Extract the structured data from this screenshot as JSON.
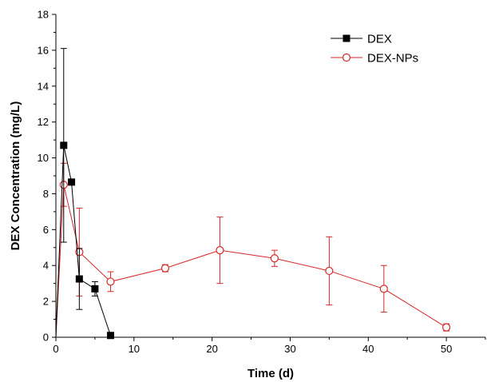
{
  "chart_data": {
    "type": "line",
    "xlabel": "Time (d)",
    "ylabel": "DEX Concentration (mg/L)",
    "xlim": [
      0,
      55
    ],
    "ylim": [
      0,
      18
    ],
    "xticks": [
      "0",
      "10",
      "20",
      "30",
      "40",
      "50"
    ],
    "yticks": [
      "0",
      "2",
      "4",
      "6",
      "8",
      "10",
      "12",
      "14",
      "16",
      "18"
    ],
    "legend_position": "top-right",
    "series": [
      {
        "name": "DEX",
        "color": "#000000",
        "marker": "filled-square",
        "points": [
          {
            "x": 0,
            "y": 0,
            "err": 0
          },
          {
            "x": 1,
            "y": 10.7,
            "err": 5.4
          },
          {
            "x": 2,
            "y": 8.65,
            "err": 0
          },
          {
            "x": 3,
            "y": 3.25,
            "err": 1.7
          },
          {
            "x": 5,
            "y": 2.7,
            "err": 0.4
          },
          {
            "x": 7,
            "y": 0.1,
            "err": 0
          }
        ]
      },
      {
        "name": "DEX-NPs",
        "color": "#d62728",
        "marker": "open-circle",
        "points": [
          {
            "x": 0,
            "y": 0,
            "err": 0
          },
          {
            "x": 1,
            "y": 8.5,
            "err": 1.2
          },
          {
            "x": 3,
            "y": 4.75,
            "err": 2.45
          },
          {
            "x": 7,
            "y": 3.1,
            "err": 0.55
          },
          {
            "x": 14,
            "y": 3.85,
            "err": 0.2
          },
          {
            "x": 21,
            "y": 4.85,
            "err": 1.85
          },
          {
            "x": 28,
            "y": 4.4,
            "err": 0.45
          },
          {
            "x": 35,
            "y": 3.7,
            "err": 1.9
          },
          {
            "x": 42,
            "y": 2.7,
            "err": 1.3
          },
          {
            "x": 50,
            "y": 0.55,
            "err": 0.2
          }
        ]
      }
    ]
  }
}
